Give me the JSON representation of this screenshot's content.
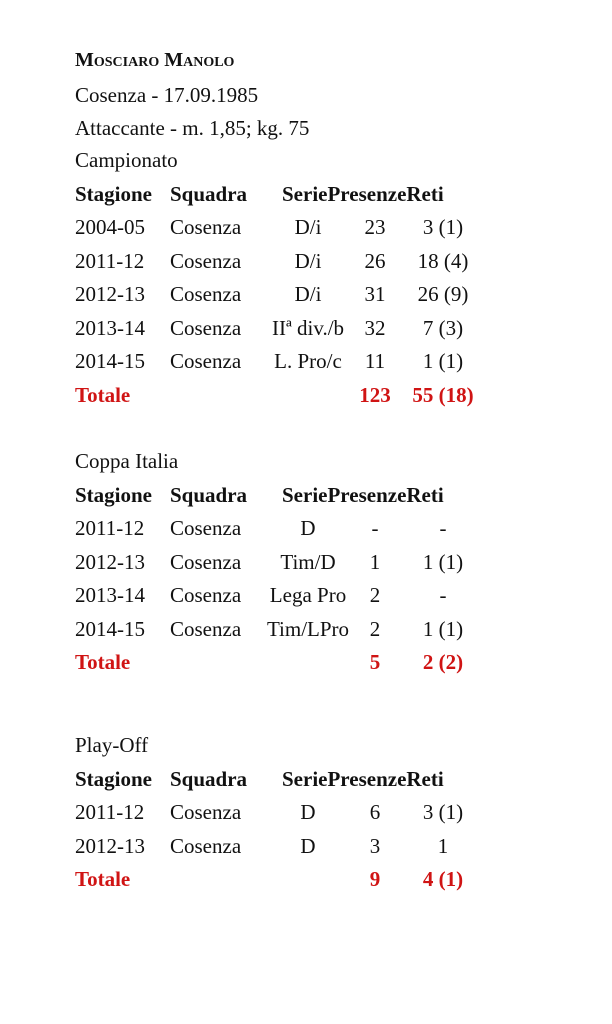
{
  "player": {
    "name": "Mosciaro Manolo",
    "birth": "Cosenza - 17.09.1985",
    "role": "Attaccante - m. 1,85; kg. 75"
  },
  "columns": [
    "Stagione",
    "Squadra",
    "Serie",
    "Presenze",
    "Reti"
  ],
  "accent_color": "#d01414",
  "sections": [
    {
      "title": "Campionato",
      "rows": [
        [
          "2004-05",
          "Cosenza",
          "D/i",
          "23",
          "3 (1)"
        ],
        [
          "2011-12",
          "Cosenza",
          "D/i",
          "26",
          "18 (4)"
        ],
        [
          "2012-13",
          "Cosenza",
          "D/i",
          "31",
          "26 (9)"
        ],
        [
          "2013-14",
          "Cosenza",
          "IIª div./b",
          "32",
          "7 (3)"
        ],
        [
          "2014-15",
          "Cosenza",
          "L. Pro/c",
          "11",
          "1 (1)"
        ]
      ],
      "total": {
        "label": "Totale",
        "presenze": "123",
        "reti": "55 (18)"
      }
    },
    {
      "title": "Coppa Italia",
      "rows": [
        [
          "2011-12",
          "Cosenza",
          "D",
          "-",
          "-"
        ],
        [
          "2012-13",
          "Cosenza",
          "Tim/D",
          "1",
          "1 (1)"
        ],
        [
          "2013-14",
          "Cosenza",
          "Lega Pro",
          "2",
          "-"
        ],
        [
          "2014-15",
          "Cosenza",
          "Tim/LPro",
          "2",
          "1 (1)"
        ]
      ],
      "total": {
        "label": "Totale",
        "presenze": "5",
        "reti": "2 (2)"
      }
    },
    {
      "title": "Play-Off",
      "rows": [
        [
          "2011-12",
          "Cosenza",
          "D",
          "6",
          "3 (1)"
        ],
        [
          "2012-13",
          "Cosenza",
          "D",
          "3",
          "1"
        ]
      ],
      "total": {
        "label": "Totale",
        "presenze": "9",
        "reti": "4 (1)"
      }
    }
  ]
}
